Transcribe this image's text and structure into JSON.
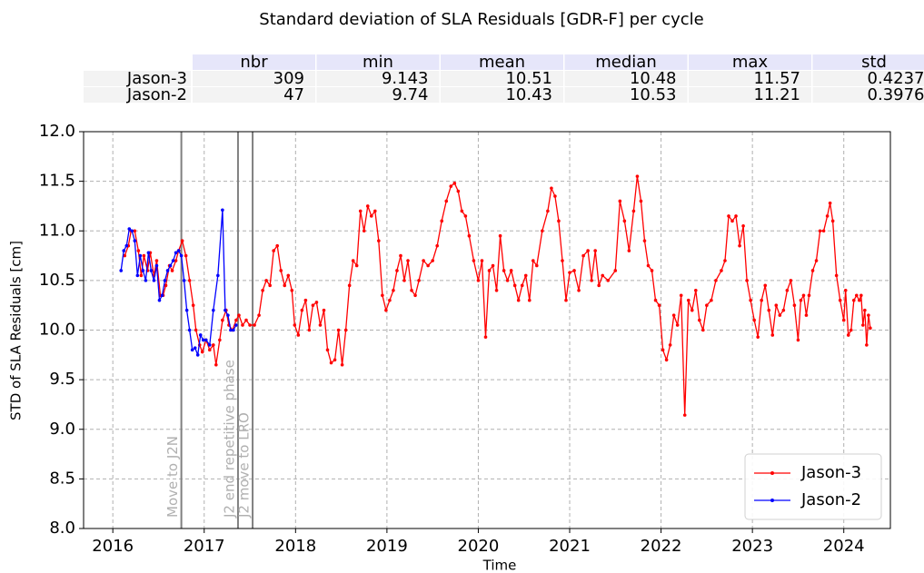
{
  "chart_data": {
    "type": "line",
    "title": "Standard deviation of SLA Residuals  [GDR-F] per cycle",
    "xlabel": "Time",
    "ylabel": "STD of SLA Residuals [cm]",
    "xlim": [
      2015.68,
      2024.51
    ],
    "xticks": [
      2016,
      2017,
      2018,
      2019,
      2020,
      2021,
      2022,
      2023,
      2024
    ],
    "ylim": [
      8,
      12
    ],
    "yticks": [
      {
        "value": 8,
        "label": "8.0"
      },
      8.5,
      {
        "value": 9,
        "label": "9.0"
      },
      9.5,
      {
        "value": 10,
        "label": "10.0"
      },
      10.5,
      {
        "value": 11,
        "label": "11.0"
      },
      11.5,
      {
        "value": 12,
        "label": "12.0"
      }
    ],
    "grid": true,
    "legend": "lower right",
    "annotations": [
      {
        "text": "Move to J2N",
        "x": 2016.75
      },
      {
        "text": "J2 end repetitive phase",
        "x": 2017.37
      },
      {
        "text": "J2 move to LRO",
        "x": 2017.53
      }
    ],
    "series": [
      {
        "name": "Jason-3",
        "color": "#ff0000",
        "x": [
          2016.13,
          2016.17,
          2016.2,
          2016.24,
          2016.28,
          2016.31,
          2016.34,
          2016.38,
          2016.41,
          2016.45,
          2016.48,
          2016.52,
          2016.55,
          2016.58,
          2016.62,
          2016.65,
          2016.69,
          2016.72,
          2016.76,
          2016.8,
          2016.84,
          2016.88,
          2016.91,
          2016.95,
          2016.98,
          2017.02,
          2017.06,
          2017.1,
          2017.13,
          2017.17,
          2017.2,
          2017.24,
          2017.27,
          2017.31,
          2017.35,
          2017.38,
          2017.42,
          2017.46,
          2017.5,
          2017.55,
          2017.6,
          2017.64,
          2017.68,
          2017.72,
          2017.76,
          2017.8,
          2017.84,
          2017.88,
          2017.92,
          2017.96,
          2017.99,
          2018.03,
          2018.07,
          2018.11,
          2018.15,
          2018.19,
          2018.23,
          2018.27,
          2018.31,
          2018.35,
          2018.39,
          2018.43,
          2018.47,
          2018.51,
          2018.55,
          2018.59,
          2018.63,
          2018.67,
          2018.71,
          2018.75,
          2018.79,
          2018.83,
          2018.87,
          2018.91,
          2018.95,
          2018.99,
          2019.03,
          2019.07,
          2019.11,
          2019.15,
          2019.19,
          2019.23,
          2019.27,
          2019.31,
          2019.35,
          2019.4,
          2019.45,
          2019.5,
          2019.55,
          2019.6,
          2019.65,
          2019.7,
          2019.74,
          2019.78,
          2019.82,
          2019.86,
          2019.9,
          2019.95,
          2020.0,
          2020.04,
          2020.08,
          2020.12,
          2020.16,
          2020.2,
          2020.24,
          2020.28,
          2020.32,
          2020.36,
          2020.4,
          2020.44,
          2020.48,
          2020.52,
          2020.56,
          2020.6,
          2020.64,
          2020.7,
          2020.76,
          2020.8,
          2020.84,
          2020.88,
          2020.92,
          2020.96,
          2021.0,
          2021.05,
          2021.1,
          2021.15,
          2021.2,
          2021.24,
          2021.28,
          2021.32,
          2021.36,
          2021.42,
          2021.5,
          2021.55,
          2021.6,
          2021.65,
          2021.7,
          2021.74,
          2021.78,
          2021.82,
          2021.86,
          2021.9,
          2021.94,
          2021.98,
          2022.02,
          2022.06,
          2022.1,
          2022.14,
          2022.18,
          2022.22,
          2022.26,
          2022.3,
          2022.34,
          2022.38,
          2022.42,
          2022.46,
          2022.5,
          2022.55,
          2022.6,
          2022.66,
          2022.7,
          2022.74,
          2022.78,
          2022.82,
          2022.86,
          2022.9,
          2022.94,
          2022.98,
          2023.02,
          2023.06,
          2023.1,
          2023.14,
          2023.18,
          2023.22,
          2023.26,
          2023.3,
          2023.34,
          2023.38,
          2023.42,
          2023.46,
          2023.5,
          2023.53,
          2023.56,
          2023.59,
          2023.62,
          2023.66,
          2023.7,
          2023.74,
          2023.78,
          2023.82,
          2023.85,
          2023.88,
          2023.92,
          2023.96,
          2024.0,
          2024.02,
          2024.05,
          2024.08,
          2024.11,
          2024.14,
          2024.17,
          2024.19,
          2024.21,
          2024.23,
          2024.25,
          2024.27,
          2024.29
        ],
        "values": [
          10.75,
          10.85,
          11.0,
          11.0,
          10.8,
          10.55,
          10.75,
          10.6,
          10.78,
          10.55,
          10.7,
          10.35,
          10.35,
          10.45,
          10.65,
          10.6,
          10.7,
          10.8,
          10.9,
          10.75,
          10.5,
          10.25,
          10.0,
          9.85,
          9.78,
          9.9,
          9.8,
          9.85,
          9.65,
          9.9,
          10.1,
          10.2,
          10.05,
          10.0,
          10.1,
          10.15,
          10.05,
          10.1,
          10.05,
          10.05,
          10.15,
          10.4,
          10.5,
          10.45,
          10.8,
          10.85,
          10.6,
          10.45,
          10.55,
          10.4,
          10.05,
          9.95,
          10.2,
          10.3,
          10.0,
          10.25,
          10.28,
          10.05,
          10.2,
          9.8,
          9.67,
          9.7,
          10.0,
          9.65,
          10.0,
          10.45,
          10.7,
          10.65,
          11.2,
          11.0,
          11.25,
          11.15,
          11.2,
          10.9,
          10.35,
          10.2,
          10.3,
          10.4,
          10.6,
          10.75,
          10.5,
          10.7,
          10.4,
          10.35,
          10.5,
          10.7,
          10.65,
          10.7,
          10.85,
          11.1,
          11.3,
          11.45,
          11.48,
          11.4,
          11.2,
          11.15,
          10.95,
          10.7,
          10.5,
          10.7,
          9.93,
          10.6,
          10.65,
          10.4,
          10.95,
          10.6,
          10.5,
          10.6,
          10.45,
          10.3,
          10.45,
          10.55,
          10.3,
          10.7,
          10.65,
          11.0,
          11.2,
          11.43,
          11.35,
          11.1,
          10.7,
          10.3,
          10.58,
          10.6,
          10.4,
          10.75,
          10.8,
          10.5,
          10.8,
          10.45,
          10.55,
          10.5,
          10.6,
          11.3,
          11.1,
          10.8,
          11.2,
          11.55,
          11.3,
          10.9,
          10.65,
          10.6,
          10.3,
          10.25,
          9.8,
          9.7,
          9.85,
          10.15,
          10.05,
          10.35,
          9.143,
          10.3,
          10.2,
          10.4,
          10.1,
          10.0,
          10.25,
          10.3,
          10.5,
          10.6,
          10.7,
          11.15,
          11.1,
          11.15,
          10.85,
          11.05,
          10.5,
          10.3,
          10.1,
          9.93,
          10.3,
          10.45,
          10.2,
          9.95,
          10.25,
          10.15,
          10.2,
          10.4,
          10.5,
          10.25,
          9.9,
          10.3,
          10.35,
          10.15,
          10.35,
          10.6,
          10.7,
          11.0,
          11.0,
          11.15,
          11.28,
          11.1,
          10.55,
          10.3,
          10.1,
          10.4,
          9.95,
          10.0,
          10.3,
          10.35,
          10.3,
          10.35,
          10.05,
          10.2,
          9.85,
          10.15,
          10.02
        ]
      },
      {
        "name": "Jason-2",
        "color": "#0000ff",
        "x": [
          2016.09,
          2016.12,
          2016.15,
          2016.18,
          2016.21,
          2016.24,
          2016.27,
          2016.3,
          2016.33,
          2016.36,
          2016.39,
          2016.42,
          2016.45,
          2016.48,
          2016.51,
          2016.54,
          2016.57,
          2016.6,
          2016.63,
          2016.66,
          2016.69,
          2016.72,
          2016.75,
          2016.78,
          2016.81,
          2016.84,
          2016.87,
          2016.9,
          2016.93,
          2016.96,
          2016.99,
          2017.02,
          2017.06,
          2017.1,
          2017.15,
          2017.2,
          2017.23,
          2017.26,
          2017.29,
          2017.32,
          2017.35
        ],
        "values": [
          10.6,
          10.8,
          10.85,
          11.02,
          11.0,
          10.9,
          10.55,
          10.75,
          10.6,
          10.5,
          10.78,
          10.6,
          10.5,
          10.65,
          10.3,
          10.35,
          10.5,
          10.6,
          10.65,
          10.7,
          10.78,
          10.8,
          10.75,
          10.5,
          10.2,
          10.0,
          9.8,
          9.82,
          9.75,
          9.95,
          9.9,
          9.9,
          9.85,
          10.2,
          10.55,
          11.21,
          10.2,
          10.15,
          10.0,
          10.0,
          10.05
        ]
      }
    ]
  },
  "table": {
    "columns": [
      "nbr",
      "min",
      "mean",
      "median",
      "max",
      "std"
    ],
    "rows": [
      {
        "label": "Jason-3",
        "values": [
          309,
          9.143,
          10.51,
          10.48,
          11.57,
          0.4237
        ]
      },
      {
        "label": "Jason-2",
        "values": [
          47,
          9.74,
          10.43,
          10.53,
          11.21,
          0.3976
        ]
      }
    ]
  }
}
